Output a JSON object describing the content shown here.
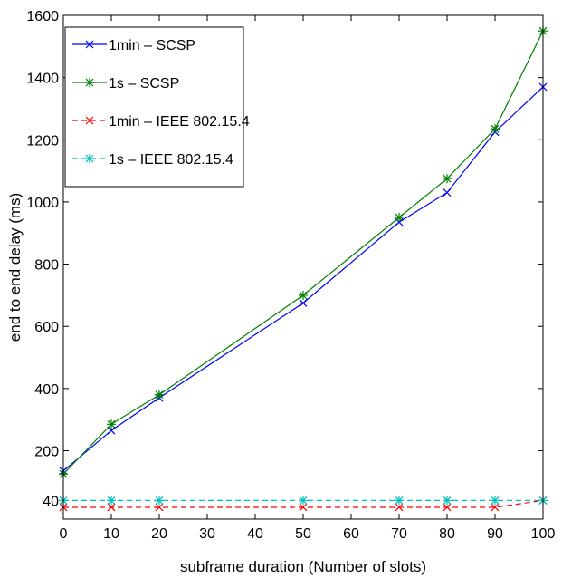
{
  "chart_data": {
    "type": "line",
    "title": "",
    "xlabel": "subframe duration (Number of slots)",
    "ylabel": "end to end delay (ms)",
    "xlim": [
      0,
      100
    ],
    "ylim": [
      -20,
      1600
    ],
    "xticks": [
      0,
      10,
      20,
      30,
      40,
      50,
      60,
      70,
      80,
      90,
      100
    ],
    "yticks": [
      40,
      200,
      400,
      600,
      800,
      1000,
      1200,
      1400,
      1600
    ],
    "grid": false,
    "legend_position": "top-left",
    "x": [
      0,
      10,
      20,
      50,
      70,
      80,
      90,
      100
    ],
    "series": [
      {
        "name": "1min – SCSP",
        "color": "#0000ff",
        "dash": "solid",
        "marker": "x",
        "values": [
          135,
          265,
          370,
          675,
          935,
          1030,
          1225,
          1370
        ]
      },
      {
        "name": "1s – SCSP",
        "color": "#008000",
        "dash": "solid",
        "marker": "star",
        "values": [
          125,
          285,
          380,
          700,
          950,
          1075,
          1235,
          1550
        ]
      },
      {
        "name": "1min – IEEE 802.15.4",
        "color": "#ff0000",
        "dash": "dashed",
        "marker": "x",
        "values": [
          18,
          18,
          18,
          18,
          18,
          18,
          18,
          40
        ]
      },
      {
        "name": "1s – IEEE 802.15.4",
        "color": "#00bfbf",
        "dash": "dashed",
        "marker": "star",
        "values": [
          40,
          40,
          40,
          40,
          40,
          40,
          40,
          40
        ]
      }
    ]
  }
}
